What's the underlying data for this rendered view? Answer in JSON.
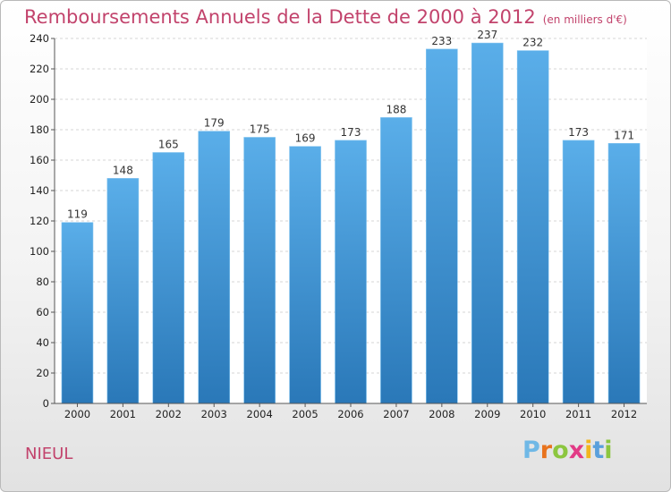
{
  "chart_data": {
    "type": "bar",
    "title": "Remboursements Annuels de la Dette de 2000 à 2012",
    "unit_note": "(en milliers d'€)",
    "categories": [
      "2000",
      "2001",
      "2002",
      "2003",
      "2004",
      "2005",
      "2006",
      "2007",
      "2008",
      "2009",
      "2010",
      "2011",
      "2012"
    ],
    "values": [
      119,
      148,
      165,
      179,
      175,
      169,
      173,
      188,
      233,
      237,
      232,
      173,
      171
    ],
    "ylim": [
      0,
      240
    ],
    "yticks": [
      0,
      20,
      40,
      60,
      80,
      100,
      120,
      140,
      160,
      180,
      200,
      220,
      240
    ],
    "grid": true,
    "bar_color_top": "#5aaee9",
    "bar_color_bottom": "#2a78b8"
  },
  "footer": {
    "city": "NIEUL",
    "logo_letters": [
      "P",
      "r",
      "o",
      "x",
      "i",
      "t",
      "i"
    ],
    "logo_colors": [
      "#6fb8e6",
      "#e8731d",
      "#8cc63f",
      "#e23a86",
      "#f2b51e",
      "#5aa0dc",
      "#8cc63f"
    ]
  }
}
